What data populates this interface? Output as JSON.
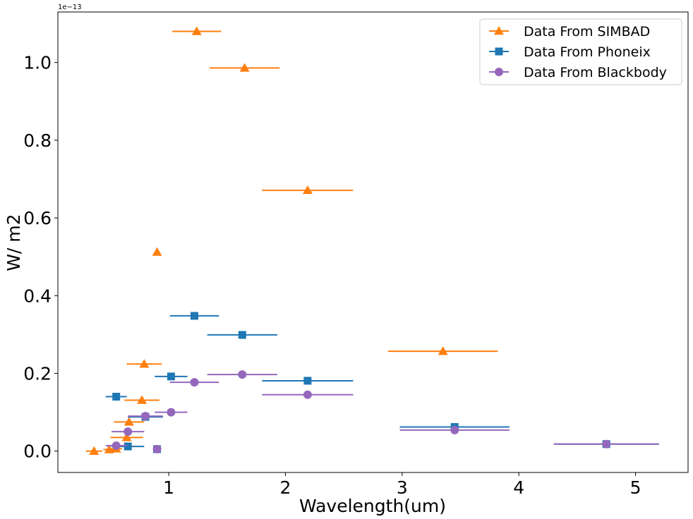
{
  "chart_data": {
    "type": "scatter",
    "xlabel": "Wavelength(um)",
    "ylabel": "W/ m2",
    "offset_text": "1e−13",
    "xlim": [
      0.05,
      5.45
    ],
    "ylim": [
      -0.055,
      1.13
    ],
    "xticks": [
      1,
      2,
      3,
      4,
      5
    ],
    "yticks": [
      0.0,
      0.2,
      0.4,
      0.6,
      0.8,
      1.0
    ],
    "ytick_labels": [
      "0.0",
      "0.2",
      "0.4",
      "0.6",
      "0.8",
      "1.0"
    ],
    "legend_position": "upper right",
    "series": [
      {
        "name": "Data From SIMBAD",
        "color": "#ff7f0e",
        "marker": "triangle",
        "points": [
          {
            "x": 0.36,
            "y": 0.0,
            "xerr": 0.07
          },
          {
            "x": 0.49,
            "y": 0.004,
            "xerr": 0.05
          },
          {
            "x": 0.55,
            "y": 0.006,
            "xerr": 0.05
          },
          {
            "x": 0.64,
            "y": 0.035,
            "xerr": 0.14
          },
          {
            "x": 0.66,
            "y": 0.075,
            "xerr": 0.13
          },
          {
            "x": 0.77,
            "y": 0.131,
            "xerr": 0.15
          },
          {
            "x": 0.79,
            "y": 0.224,
            "xerr": 0.15
          },
          {
            "x": 0.9,
            "y": 0.512,
            "xerr": 0.0
          },
          {
            "x": 1.24,
            "y": 1.08,
            "xerr": 0.21
          },
          {
            "x": 1.65,
            "y": 0.986,
            "xerr": 0.3
          },
          {
            "x": 2.19,
            "y": 0.671,
            "xerr": 0.39
          },
          {
            "x": 3.35,
            "y": 0.257,
            "xerr": 0.47
          }
        ]
      },
      {
        "name": "Data From Phoneix",
        "color": "#1f77b4",
        "marker": "square",
        "points": [
          {
            "x": 0.55,
            "y": 0.14,
            "xerr": 0.09
          },
          {
            "x": 0.65,
            "y": 0.012,
            "xerr": 0.14
          },
          {
            "x": 0.8,
            "y": 0.088,
            "xerr": 0.15
          },
          {
            "x": 0.9,
            "y": 0.005,
            "xerr": 0.03
          },
          {
            "x": 1.02,
            "y": 0.192,
            "xerr": 0.14
          },
          {
            "x": 1.22,
            "y": 0.348,
            "xerr": 0.21
          },
          {
            "x": 1.63,
            "y": 0.299,
            "xerr": 0.3
          },
          {
            "x": 2.19,
            "y": 0.181,
            "xerr": 0.39
          },
          {
            "x": 3.45,
            "y": 0.062,
            "xerr": 0.47
          },
          {
            "x": 4.75,
            "y": 0.018,
            "xerr": 0.45
          }
        ]
      },
      {
        "name": "Data From Blackbody",
        "color": "#9467bd",
        "marker": "circle",
        "points": [
          {
            "x": 0.55,
            "y": 0.014,
            "xerr": 0.09
          },
          {
            "x": 0.65,
            "y": 0.05,
            "xerr": 0.14
          },
          {
            "x": 0.8,
            "y": 0.09,
            "xerr": 0.15
          },
          {
            "x": 0.9,
            "y": 0.005,
            "xerr": 0.03
          },
          {
            "x": 1.02,
            "y": 0.1,
            "xerr": 0.14
          },
          {
            "x": 1.22,
            "y": 0.177,
            "xerr": 0.21
          },
          {
            "x": 1.63,
            "y": 0.197,
            "xerr": 0.3
          },
          {
            "x": 2.19,
            "y": 0.145,
            "xerr": 0.39
          },
          {
            "x": 3.45,
            "y": 0.054,
            "xerr": 0.47
          },
          {
            "x": 4.75,
            "y": 0.018,
            "xerr": 0.45
          }
        ]
      }
    ]
  }
}
